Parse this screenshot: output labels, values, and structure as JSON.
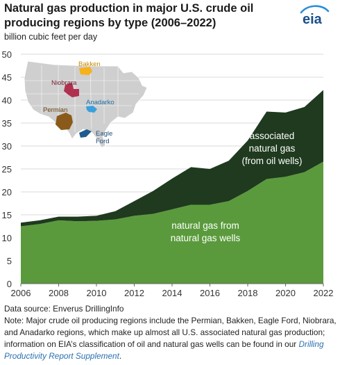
{
  "header": {
    "title": "Natural gas production in major U.S. crude oil producing regions by type (2006–2022)",
    "unit_label": "billion cubic feet per day",
    "logo_text": "eia"
  },
  "map": {
    "regions": [
      "Bakken",
      "Niobrara",
      "Anadarko",
      "Permian",
      "Eagle Ford"
    ],
    "colors": {
      "Bakken": "#f5b21a",
      "Niobrara": "#b0314e",
      "Anadarko": "#3aa0dc",
      "Permian": "#8a5a1a",
      "Eagle Ford": "#1f5c8f",
      "states": "#c8c8c8"
    }
  },
  "chart_data": {
    "type": "area",
    "stacked": true,
    "x": [
      2006,
      2007,
      2008,
      2009,
      2010,
      2011,
      2012,
      2013,
      2014,
      2015,
      2016,
      2017,
      2018,
      2019,
      2020,
      2021,
      2022
    ],
    "series": [
      {
        "name": "natural gas from natural gas wells",
        "values": [
          12.5,
          13.0,
          13.8,
          13.6,
          13.7,
          14.0,
          14.8,
          15.2,
          16.2,
          17.2,
          17.2,
          18.0,
          20.2,
          22.8,
          23.3,
          24.3,
          26.6
        ],
        "color": "#5a9a3c"
      },
      {
        "name": "associated natural gas (from oil wells)",
        "values": [
          0.8,
          0.8,
          0.8,
          1.0,
          1.1,
          1.8,
          3.2,
          5.0,
          6.7,
          8.2,
          7.8,
          8.8,
          11.0,
          14.7,
          14.0,
          14.2,
          15.6
        ],
        "color": "#1f3a1e"
      }
    ],
    "annotations": {
      "associated": [
        "associated",
        "natural gas",
        "(from oil wells)"
      ],
      "nonassociated": [
        "natural gas from",
        "natural gas wells"
      ]
    },
    "y_ticks": [
      0,
      5,
      10,
      15,
      20,
      25,
      30,
      35,
      40,
      45,
      50
    ],
    "x_ticks": [
      2006,
      2008,
      2010,
      2012,
      2014,
      2016,
      2018,
      2020,
      2022
    ],
    "ylim": [
      0,
      50
    ],
    "xlim": [
      2006,
      2022
    ],
    "grid": true
  },
  "footer": {
    "source": "Data source: Enverus DrillingInfo",
    "note": "Note: Major crude oil producing regions include the Permian, Bakken, Eagle Ford, Niobrara, and Anadarko regions, which make up almost all U.S. associated natural gas production; information on EIA’s classification of oil and natural gas wells can be found in our ",
    "link_text": "Drilling Productivity Report Supplement",
    "note_end": "."
  }
}
